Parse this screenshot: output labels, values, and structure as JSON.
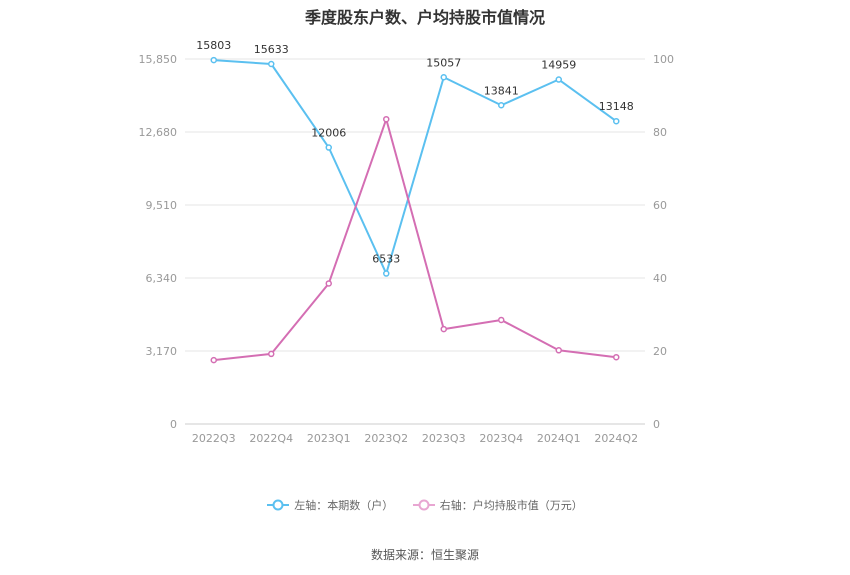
{
  "chart_data": {
    "type": "line",
    "title": "季度股东户数、户均持股市值情况",
    "categories": [
      "2022Q3",
      "2022Q4",
      "2023Q1",
      "2023Q2",
      "2023Q3",
      "2023Q4",
      "2024Q1",
      "2024Q2"
    ],
    "left_axis": {
      "ticks": [
        "0",
        "3,170",
        "6,340",
        "9,510",
        "12,680",
        "15,850"
      ],
      "ylim": [
        0,
        15850
      ]
    },
    "right_axis": {
      "ticks": [
        "0",
        "20",
        "40",
        "60",
        "80",
        "100"
      ],
      "ylim": [
        0,
        100
      ]
    },
    "series": [
      {
        "name": "左轴：本期数（户）",
        "axis": "left",
        "color": "#5bc0f0",
        "values": [
          15803,
          15633,
          12006,
          6533,
          15057,
          13841,
          14959,
          13148
        ],
        "labels": [
          "15803",
          "15633",
          "12006",
          "6533",
          "15057",
          "13841",
          "14959",
          "13148"
        ]
      },
      {
        "name": "右轴：户均持股市值（万元）",
        "axis": "right",
        "color": "#d46eb3",
        "values": [
          17.5,
          19.2,
          38.5,
          83.5,
          26.0,
          28.5,
          20.2,
          18.3
        ]
      }
    ],
    "grid": true,
    "legend_position": "bottom"
  },
  "footer": {
    "source": "数据来源：恒生聚源"
  }
}
